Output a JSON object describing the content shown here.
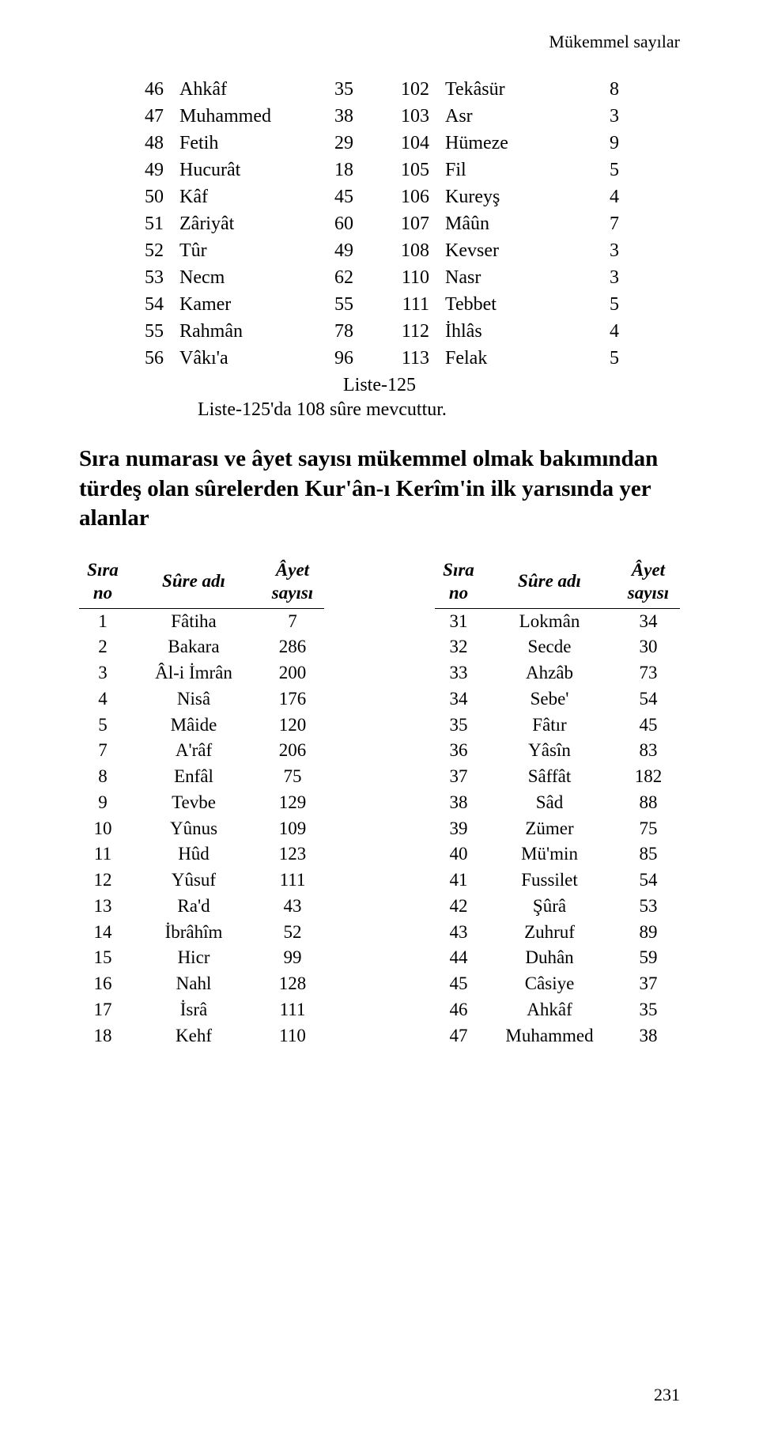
{
  "running_head": "Mükemmel sayılar",
  "top_left_rows": [
    {
      "n": "46",
      "name": "Ahkâf",
      "v": "35"
    },
    {
      "n": "47",
      "name": "Muhammed",
      "v": "38"
    },
    {
      "n": "48",
      "name": "Fetih",
      "v": "29"
    },
    {
      "n": "49",
      "name": "Hucurât",
      "v": "18"
    },
    {
      "n": "50",
      "name": "Kâf",
      "v": "45"
    },
    {
      "n": "51",
      "name": "Zâriyât",
      "v": "60"
    },
    {
      "n": "52",
      "name": "Tûr",
      "v": "49"
    },
    {
      "n": "53",
      "name": "Necm",
      "v": "62"
    },
    {
      "n": "54",
      "name": "Kamer",
      "v": "55"
    },
    {
      "n": "55",
      "name": "Rahmân",
      "v": "78"
    },
    {
      "n": "56",
      "name": "Vâkı'a",
      "v": "96"
    }
  ],
  "top_right_rows": [
    {
      "n": "102",
      "name": "Tekâsür",
      "v": "8"
    },
    {
      "n": "103",
      "name": "Asr",
      "v": "3"
    },
    {
      "n": "104",
      "name": "Hümeze",
      "v": "9"
    },
    {
      "n": "105",
      "name": "Fil",
      "v": "5"
    },
    {
      "n": "106",
      "name": "Kureyş",
      "v": "4"
    },
    {
      "n": "107",
      "name": "Mâûn",
      "v": "7"
    },
    {
      "n": "108",
      "name": "Kevser",
      "v": "3"
    },
    {
      "n": "110",
      "name": "Nasr",
      "v": "3"
    },
    {
      "n": "111",
      "name": "Tebbet",
      "v": "5"
    },
    {
      "n": "112",
      "name": "İhlâs",
      "v": "4"
    },
    {
      "n": "113",
      "name": "Felak",
      "v": "5"
    }
  ],
  "liste_label": "Liste-125",
  "liste_note": "Liste-125'da 108 sûre mevcuttur.",
  "section_heading": "Sıra numarası ve âyet sayısı mükemmel olmak bakımından türdeş olan sûrelerden Kur'ân-ı Kerîm'in ilk yarısında yer alanlar",
  "headers": {
    "sira_line1": "Sıra",
    "sira_line2": "no",
    "sure": "Sûre adı",
    "ayet_line1": "Âyet",
    "ayet_line2": "sayısı"
  },
  "lower_left_rows": [
    {
      "n": "1",
      "name": "Fâtiha",
      "v": "7"
    },
    {
      "n": "2",
      "name": "Bakara",
      "v": "286"
    },
    {
      "n": "3",
      "name": "Âl-i İmrân",
      "v": "200"
    },
    {
      "n": "4",
      "name": "Nisâ",
      "v": "176"
    },
    {
      "n": "5",
      "name": "Mâide",
      "v": "120"
    },
    {
      "n": "7",
      "name": "A'râf",
      "v": "206"
    },
    {
      "n": "8",
      "name": "Enfâl",
      "v": "75"
    },
    {
      "n": "9",
      "name": "Tevbe",
      "v": "129"
    },
    {
      "n": "10",
      "name": "Yûnus",
      "v": "109"
    },
    {
      "n": "11",
      "name": "Hûd",
      "v": "123"
    },
    {
      "n": "12",
      "name": "Yûsuf",
      "v": "111"
    },
    {
      "n": "13",
      "name": "Ra'd",
      "v": "43"
    },
    {
      "n": "14",
      "name": "İbrâhîm",
      "v": "52"
    },
    {
      "n": "15",
      "name": "Hicr",
      "v": "99"
    },
    {
      "n": "16",
      "name": "Nahl",
      "v": "128"
    },
    {
      "n": "17",
      "name": "İsrâ",
      "v": "111"
    },
    {
      "n": "18",
      "name": "Kehf",
      "v": "110"
    }
  ],
  "lower_right_rows": [
    {
      "n": "31",
      "name": "Lokmân",
      "v": "34"
    },
    {
      "n": "32",
      "name": "Secde",
      "v": "30"
    },
    {
      "n": "33",
      "name": "Ahzâb",
      "v": "73"
    },
    {
      "n": "34",
      "name": "Sebe'",
      "v": "54"
    },
    {
      "n": "35",
      "name": "Fâtır",
      "v": "45"
    },
    {
      "n": "36",
      "name": "Yâsîn",
      "v": "83"
    },
    {
      "n": "37",
      "name": "Sâffât",
      "v": "182"
    },
    {
      "n": "38",
      "name": "Sâd",
      "v": "88"
    },
    {
      "n": "39",
      "name": "Zümer",
      "v": "75"
    },
    {
      "n": "40",
      "name": "Mü'min",
      "v": "85"
    },
    {
      "n": "41",
      "name": "Fussilet",
      "v": "54"
    },
    {
      "n": "42",
      "name": "Şûrâ",
      "v": "53"
    },
    {
      "n": "43",
      "name": "Zuhruf",
      "v": "89"
    },
    {
      "n": "44",
      "name": "Duhân",
      "v": "59"
    },
    {
      "n": "45",
      "name": "Câsiye",
      "v": "37"
    },
    {
      "n": "46",
      "name": "Ahkâf",
      "v": "35"
    },
    {
      "n": "47",
      "name": "Muhammed",
      "v": "38"
    }
  ],
  "page_number": "231"
}
